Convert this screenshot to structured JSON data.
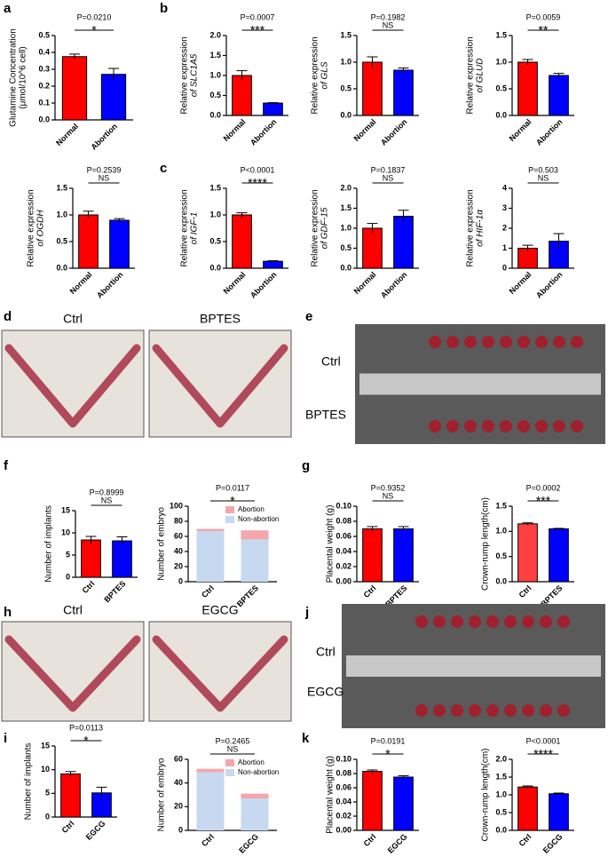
{
  "chart_data": [
    {
      "type": "bar",
      "panel": "a",
      "ylabel": [
        "Glutamine Concentration",
        "(μmol/10^6 cell)"
      ],
      "categories": [
        "Normal",
        "Abortion"
      ],
      "values": [
        0.375,
        0.27
      ],
      "errors": [
        0.015,
        0.035
      ],
      "colors": [
        "#ff0000",
        "#0000ff"
      ],
      "ylim": [
        0,
        0.5
      ],
      "yticks": [
        {
          "value": 0,
          "label": "0.0"
        },
        0.1,
        0.2,
        0.3,
        0.4,
        0.5
      ],
      "p_label": "P=0.0210",
      "sig": "*"
    },
    {
      "type": "bar",
      "panel": "b",
      "ylabel": [
        "Relative expression",
        "of SLC1A5"
      ],
      "categories": [
        "Normal",
        "Abortion"
      ],
      "values": [
        1.0,
        0.31
      ],
      "errors": [
        0.12,
        0.01
      ],
      "colors": [
        "#ff0000",
        "#0000ff"
      ],
      "ylim": [
        0,
        2.0
      ],
      "yticks": [
        {
          "value": 0,
          "label": "0.0"
        },
        0.5,
        {
          "value": 1,
          "label": "1.0"
        },
        1.5,
        {
          "value": 2,
          "label": "2.0"
        }
      ],
      "p_label": "P=0.0007",
      "sig": "***"
    },
    {
      "type": "bar",
      "ylabel": [
        "Relative expression",
        "of GLS"
      ],
      "categories": [
        "Normal",
        "Abortion"
      ],
      "values": [
        1.0,
        0.85
      ],
      "errors": [
        0.1,
        0.04
      ],
      "colors": [
        "#ff0000",
        "#0000ff"
      ],
      "ylim": [
        0,
        1.5
      ],
      "yticks": [
        {
          "value": 0,
          "label": "0.0"
        },
        0.5,
        {
          "value": 1,
          "label": "1.0"
        },
        1.5
      ],
      "p_label": "P=0.1982",
      "sig": "NS"
    },
    {
      "type": "bar",
      "ylabel": [
        "Relative expression",
        "of GLUD"
      ],
      "categories": [
        "Normal",
        "Abortion"
      ],
      "values": [
        1.0,
        0.75
      ],
      "errors": [
        0.05,
        0.04
      ],
      "colors": [
        "#ff0000",
        "#0000ff"
      ],
      "ylim": [
        0,
        1.5
      ],
      "yticks": [
        {
          "value": 0,
          "label": "0.0"
        },
        0.5,
        {
          "value": 1,
          "label": "1.0"
        },
        1.5
      ],
      "p_label": "P=0.0059",
      "sig": "**"
    },
    {
      "type": "bar",
      "ylabel": [
        "Relative expression",
        "of OGDH"
      ],
      "categories": [
        "Normal",
        "Abortion"
      ],
      "values": [
        1.0,
        0.9
      ],
      "errors": [
        0.07,
        0.03
      ],
      "colors": [
        "#ff0000",
        "#0000ff"
      ],
      "ylim": [
        0,
        1.5
      ],
      "yticks": [
        {
          "value": 0,
          "label": "0.0"
        },
        0.5,
        {
          "value": 1,
          "label": "1.0"
        },
        1.5
      ],
      "p_label": "P=0.2539",
      "sig": "NS"
    },
    {
      "type": "bar",
      "panel": "c",
      "ylabel": [
        "Relative expression",
        "of IGF-1"
      ],
      "categories": [
        "Normal",
        "Abortion"
      ],
      "values": [
        1.0,
        0.13
      ],
      "errors": [
        0.04,
        0.01
      ],
      "colors": [
        "#ff0000",
        "#0000ff"
      ],
      "ylim": [
        0,
        1.5
      ],
      "yticks": [
        {
          "value": 0,
          "label": "0.0"
        },
        0.5,
        {
          "value": 1,
          "label": "1.0"
        },
        1.5
      ],
      "p_label": "P<0.0001",
      "sig": "****"
    },
    {
      "type": "bar",
      "ylabel": [
        "Relative expression",
        "of GDF-15"
      ],
      "categories": [
        "Normal",
        "Abortion"
      ],
      "values": [
        1.0,
        1.3
      ],
      "errors": [
        0.12,
        0.15
      ],
      "colors": [
        "#ff0000",
        "#0000ff"
      ],
      "ylim": [
        0,
        2.0
      ],
      "yticks": [
        {
          "value": 0,
          "label": "0.0"
        },
        0.5,
        {
          "value": 1,
          "label": "1.0"
        },
        1.5,
        {
          "value": 2,
          "label": "2.0"
        }
      ],
      "p_label": "P=0.1837",
      "sig": "NS"
    },
    {
      "type": "bar",
      "ylabel": [
        "Relative expression",
        "of HIF-1α"
      ],
      "categories": [
        "Normal",
        "Abortion"
      ],
      "values": [
        1.0,
        1.35
      ],
      "errors": [
        0.15,
        0.38
      ],
      "colors": [
        "#ff0000",
        "#0000ff"
      ],
      "ylim": [
        0,
        4
      ],
      "yticks": [
        0,
        1,
        2,
        3,
        4
      ],
      "p_label": "P=0.503",
      "sig": "NS"
    },
    {
      "type": "bar",
      "panel": "f",
      "ylabel": [
        "Number of implants"
      ],
      "categories": [
        "Ctrl",
        "BPTES"
      ],
      "values": [
        8.4,
        8.2
      ],
      "errors": [
        0.8,
        0.9
      ],
      "colors": [
        "#ff0000",
        "#0000ff"
      ],
      "ylim": [
        0,
        15
      ],
      "yticks": [
        0,
        5,
        10,
        15
      ],
      "p_label": "P=0.8999",
      "sig": "NS"
    },
    {
      "type": "stacked",
      "ylabel": [
        "Number of embryo"
      ],
      "categories": [
        "Ctrl",
        "BPTES"
      ],
      "series": [
        {
          "name": "Abortion",
          "color": "#f4a6ab",
          "values": [
            3,
            12
          ]
        },
        {
          "name": "Non-abortion",
          "color": "#c6d9f1",
          "values": [
            67,
            56
          ]
        }
      ],
      "ylim": [
        0,
        100
      ],
      "yticks": [
        0,
        20,
        40,
        60,
        80,
        100
      ],
      "p_label": "P=0.0117",
      "sig": "*"
    },
    {
      "type": "bar",
      "panel": "g",
      "ylabel": [
        "Placental weight (g)"
      ],
      "categories": [
        "Ctrl",
        "BPTES"
      ],
      "values": [
        0.07,
        0.07
      ],
      "errors": [
        0.003,
        0.003
      ],
      "colors": [
        "#ff0000",
        "#0000ff"
      ],
      "ylim": [
        0,
        0.1
      ],
      "yticks": [
        {
          "value": 0,
          "label": "0.00"
        },
        {
          "value": 0.02,
          "label": "0.02"
        },
        {
          "value": 0.04,
          "label": "0.04"
        },
        {
          "value": 0.06,
          "label": "0.06"
        },
        {
          "value": 0.08,
          "label": "0.08"
        },
        {
          "value": 0.1,
          "label": "0.10"
        }
      ],
      "p_label": "P=0.9352",
      "sig": "NS"
    },
    {
      "type": "bar",
      "ylabel": [
        "Crown-rump length(cm)"
      ],
      "categories": [
        "Ctrl",
        "BPTES"
      ],
      "values": [
        1.15,
        1.05
      ],
      "errors": [
        0.02,
        0.01
      ],
      "colors": [
        "#ff4040",
        "#0000ff"
      ],
      "ylim": [
        0,
        1.5
      ],
      "yticks": [
        {
          "value": 0,
          "label": "0.0"
        },
        0.5,
        {
          "value": 1,
          "label": "1.0"
        },
        1.5
      ],
      "p_label": "P=0.0002",
      "sig": "***"
    },
    {
      "type": "bar",
      "panel": "i",
      "ylabel": [
        "Number of implants"
      ],
      "categories": [
        "Ctrl",
        "EGCG"
      ],
      "values": [
        9.1,
        5.1
      ],
      "errors": [
        0.5,
        1.2
      ],
      "colors": [
        "#ff0000",
        "#0000ff"
      ],
      "ylim": [
        0,
        15
      ],
      "yticks": [
        0,
        5,
        10,
        15
      ],
      "p_label": "P=0.0113",
      "sig": "*"
    },
    {
      "type": "stacked",
      "ylabel": [
        "Number of embryo"
      ],
      "categories": [
        "Ctrl",
        "EGCG"
      ],
      "series": [
        {
          "name": "Abortion",
          "color": "#f4a6ab",
          "values": [
            3,
            4
          ]
        },
        {
          "name": "Non-abortion",
          "color": "#c6d9f1",
          "values": [
            49,
            27
          ]
        }
      ],
      "ylim": [
        0,
        60
      ],
      "yticks": [
        0,
        20,
        40,
        60
      ],
      "p_label": "P=0.2465",
      "sig": "NS"
    },
    {
      "type": "bar",
      "panel": "k",
      "ylabel": [
        "Placental weight (g)"
      ],
      "categories": [
        "Ctrl",
        "EGCG"
      ],
      "values": [
        0.083,
        0.075
      ],
      "errors": [
        0.002,
        0.002
      ],
      "colors": [
        "#ff0000",
        "#0000ff"
      ],
      "ylim": [
        0,
        0.1
      ],
      "yticks": [
        {
          "value": 0,
          "label": "0.00"
        },
        {
          "value": 0.02,
          "label": "0.02"
        },
        {
          "value": 0.04,
          "label": "0.04"
        },
        {
          "value": 0.06,
          "label": "0.06"
        },
        {
          "value": 0.08,
          "label": "0.08"
        },
        {
          "value": 0.1,
          "label": "0.10"
        }
      ],
      "p_label": "P=0.0191",
      "sig": "*"
    },
    {
      "type": "bar",
      "ylabel": [
        "Crown-rump length(cm)"
      ],
      "categories": [
        "Ctrl",
        "EGCG"
      ],
      "values": [
        1.22,
        1.03
      ],
      "errors": [
        0.03,
        0.02
      ],
      "colors": [
        "#ff0000",
        "#0000ff"
      ],
      "ylim": [
        0,
        2.0
      ],
      "yticks": [
        {
          "value": 0,
          "label": "0.0"
        },
        0.5,
        {
          "value": 1,
          "label": "1.0"
        },
        1.5,
        {
          "value": 2,
          "label": "2.0"
        }
      ],
      "p_label": "P<0.0001",
      "sig": "****"
    }
  ],
  "photos": [
    {
      "panel": "d",
      "labels": [
        "Ctrl",
        "BPTES"
      ]
    },
    {
      "panel": "e",
      "labels": [
        "Ctrl",
        "BPTES"
      ]
    },
    {
      "panel": "h",
      "labels": [
        "Ctrl",
        "EGCG"
      ]
    },
    {
      "panel": "j",
      "labels": [
        "Ctrl",
        "EGCG"
      ]
    }
  ]
}
